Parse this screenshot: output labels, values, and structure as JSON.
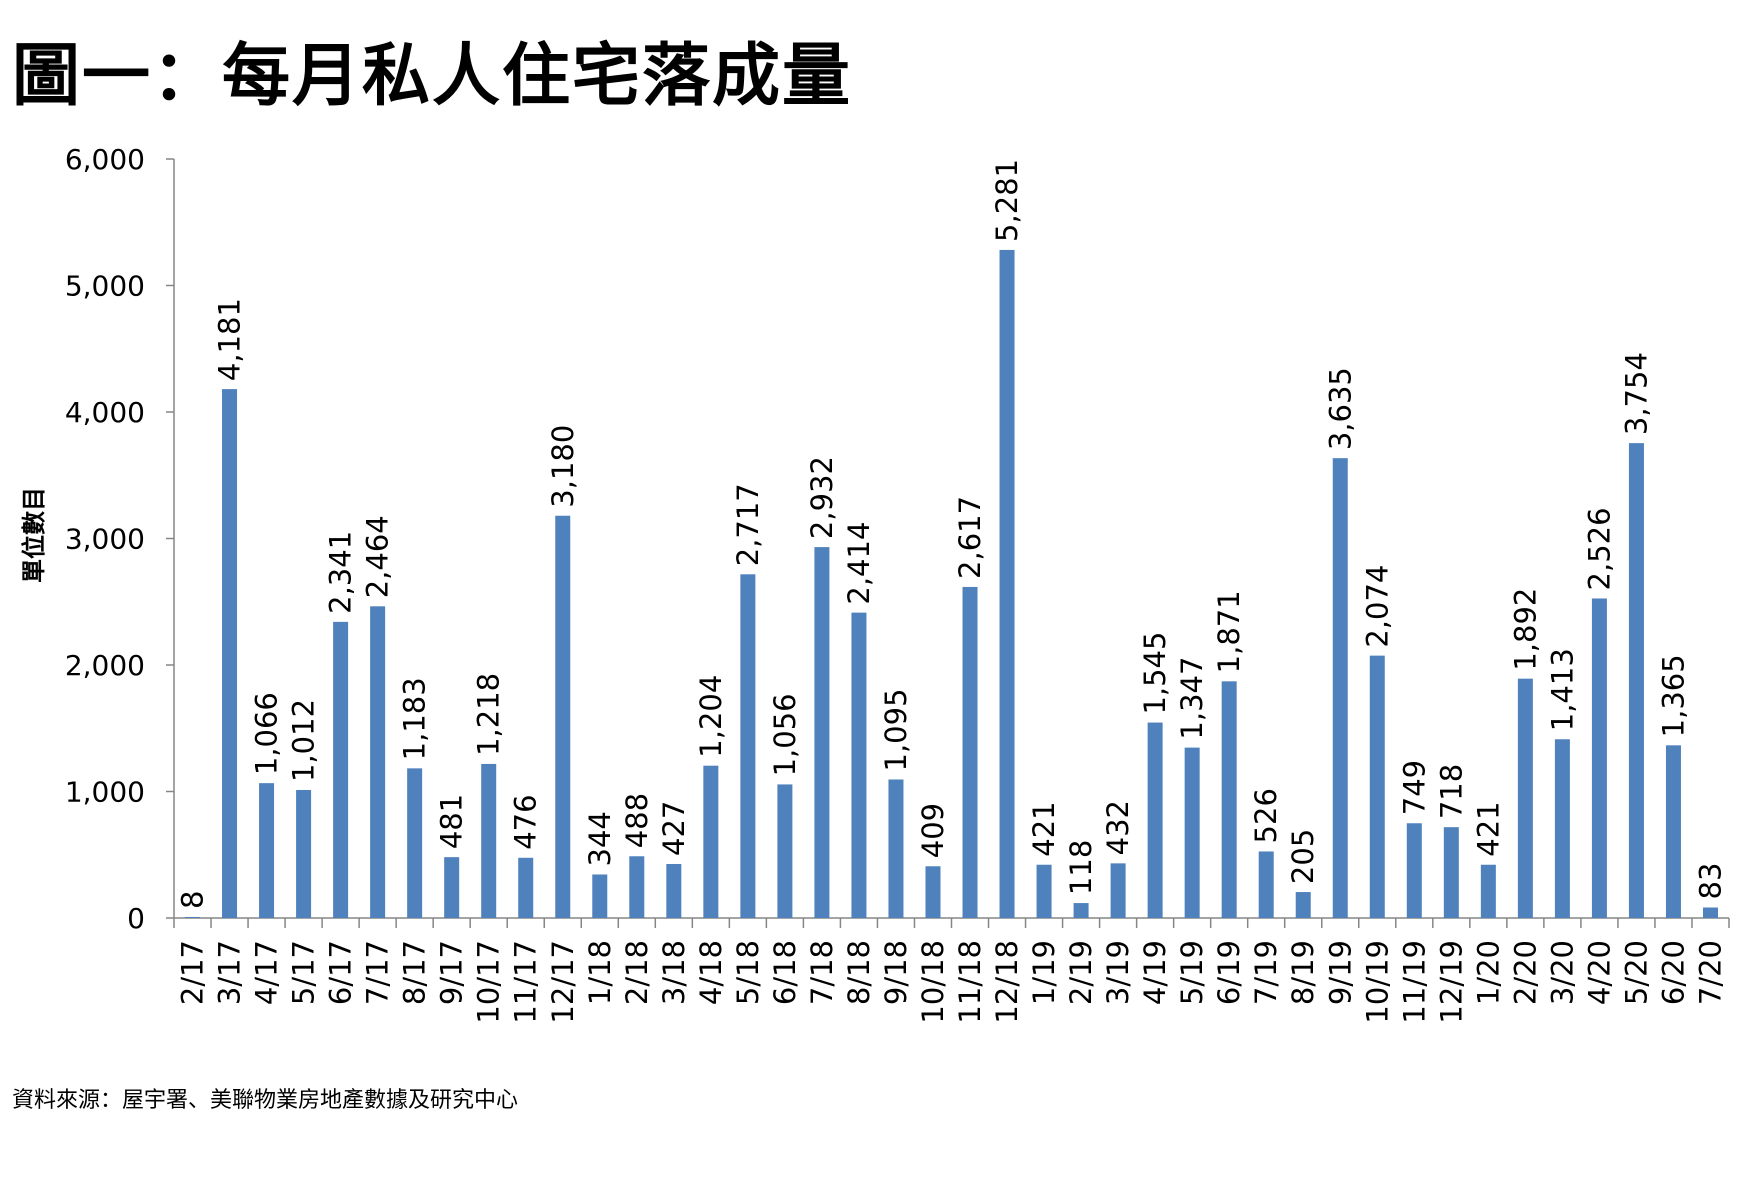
{
  "chart_data": {
    "type": "bar",
    "title": "圖一：每月私人住宅落成量",
    "xlabel": "",
    "ylabel": "單位數目",
    "ylim": [
      0,
      6000
    ],
    "yticks": [
      0,
      1000,
      2000,
      3000,
      4000,
      5000,
      6000
    ],
    "ytick_labels": [
      "0",
      "1,000",
      "2,000",
      "3,000",
      "4,000",
      "5,000",
      "6,000"
    ],
    "grid": false,
    "bar_color": "#4f81bd",
    "categories": [
      "2/17",
      "3/17",
      "4/17",
      "5/17",
      "6/17",
      "7/17",
      "8/17",
      "9/17",
      "10/17",
      "11/17",
      "12/17",
      "1/18",
      "2/18",
      "3/18",
      "4/18",
      "5/18",
      "6/18",
      "7/18",
      "8/18",
      "9/18",
      "10/18",
      "11/18",
      "12/18",
      "1/19",
      "2/19",
      "3/19",
      "4/19",
      "5/19",
      "6/19",
      "7/19",
      "8/19",
      "9/19",
      "10/19",
      "11/19",
      "12/19",
      "1/20",
      "2/20",
      "3/20",
      "4/20",
      "5/20",
      "6/20",
      "7/20"
    ],
    "values": [
      8,
      4181,
      1066,
      1012,
      2341,
      2464,
      1183,
      481,
      1218,
      476,
      3180,
      344,
      488,
      427,
      1204,
      2717,
      1056,
      2932,
      2414,
      1095,
      409,
      2617,
      5281,
      421,
      118,
      432,
      1545,
      1347,
      1871,
      526,
      205,
      3635,
      2074,
      749,
      718,
      421,
      1892,
      1413,
      2526,
      3754,
      1365,
      83
    ],
    "source": "資料來源：屋宇署、美聯物業房地產數據及研究中心"
  }
}
